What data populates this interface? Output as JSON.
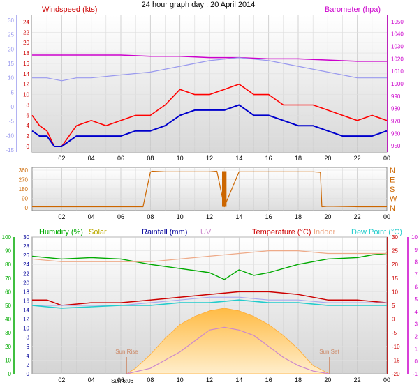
{
  "page_title": "24 hour graph day : 20 April 2014",
  "colors": {
    "wind": "#cc0000",
    "gust": "#ff0000",
    "avg": "#0000cc",
    "temp_axis": "#9999ee",
    "baro": "#cc00cc",
    "dir": "#cc6600",
    "humidity": "#00aa00",
    "solar": "#bbaa00",
    "rain": "#000099",
    "uv": "#cc88cc",
    "temperature": "#cc0000",
    "indoor": "#eeaa88",
    "dewpoint": "#22cccc",
    "solar_fill_top": "#ffcc66",
    "solar_fill_bottom": "#ffeebb"
  },
  "x_ticks": [
    "02",
    "04",
    "06",
    "08",
    "10",
    "12",
    "14",
    "16",
    "18",
    "20",
    "22",
    "00"
  ],
  "chart_data": [
    {
      "type": "line",
      "title": "",
      "legend": [
        {
          "key": "windspeed",
          "label": "Windspeed (kts)"
        },
        {
          "key": "barometer",
          "label": "Barometer (hpa)"
        }
      ],
      "y_left_ticks": [
        0,
        2,
        4,
        6,
        8,
        10,
        12,
        14,
        16,
        18,
        20,
        22,
        24
      ],
      "y_left2_ticks": [
        -15,
        -10,
        -5,
        0,
        5,
        10,
        15,
        20,
        25,
        30
      ],
      "y_right_ticks": [
        950,
        960,
        970,
        980,
        990,
        1000,
        1010,
        1020,
        1030,
        1040,
        1050
      ],
      "ylim_left": [
        0,
        25
      ],
      "ylim_right": [
        945,
        1055
      ],
      "xlim": [
        0,
        24
      ],
      "series": [
        {
          "key": "gust",
          "x": [
            0,
            0.5,
            1,
            1.5,
            2,
            3,
            4,
            5,
            6,
            7,
            8,
            9,
            10,
            11,
            12,
            13,
            14,
            15,
            16,
            17,
            18,
            19,
            20,
            21,
            22,
            23,
            24
          ],
          "values": [
            6,
            4,
            3,
            0,
            0,
            4,
            5,
            4,
            5,
            6,
            6,
            8,
            11,
            10,
            10,
            11,
            12,
            10,
            10,
            8,
            8,
            8,
            7,
            6,
            5,
            6,
            5
          ]
        },
        {
          "key": "avg",
          "x": [
            0,
            0.5,
            1,
            1.5,
            2,
            3,
            4,
            5,
            6,
            7,
            8,
            9,
            10,
            11,
            12,
            13,
            14,
            15,
            16,
            17,
            18,
            19,
            20,
            21,
            22,
            23,
            24
          ],
          "values": [
            3,
            2,
            2,
            0,
            0,
            2,
            2,
            2,
            2,
            3,
            3,
            4,
            6,
            7,
            7,
            7,
            8,
            6,
            6,
            5,
            4,
            4,
            3,
            2,
            2,
            2,
            3
          ]
        },
        {
          "key": "barometer",
          "x": [
            0,
            2,
            4,
            6,
            8,
            10,
            12,
            14,
            16,
            18,
            20,
            22,
            24
          ],
          "values": [
            1023,
            1023,
            1023,
            1023,
            1022,
            1022,
            1021,
            1021,
            1020,
            1020,
            1019,
            1018,
            1018
          ]
        },
        {
          "key": "outdoor_temp_axis",
          "x": [
            0,
            1,
            2,
            3,
            4,
            6,
            8,
            10,
            12,
            14,
            16,
            18,
            20,
            22,
            24
          ],
          "values": [
            10,
            10,
            9,
            10,
            10,
            11,
            12,
            14,
            16,
            17,
            16,
            14,
            12,
            10,
            10
          ]
        }
      ]
    },
    {
      "type": "line",
      "title": "",
      "y_left_ticks": [
        0,
        90,
        180,
        270,
        360
      ],
      "y_right_labels": [
        "N",
        "W",
        "S",
        "E",
        "N"
      ],
      "ylim": [
        0,
        360
      ],
      "xlim": [
        0,
        24
      ],
      "series": [
        {
          "key": "wind_direction",
          "x": [
            0,
            4,
            7.5,
            8,
            8.1,
            9,
            10,
            12,
            12.5,
            13,
            14,
            16,
            18,
            19,
            19.5,
            19.6,
            20,
            22,
            24
          ],
          "values": [
            10,
            10,
            10,
            340,
            350,
            345,
            345,
            345,
            350,
            10,
            345,
            345,
            345,
            345,
            340,
            10,
            15,
            10,
            10
          ]
        }
      ]
    },
    {
      "type": "line",
      "title": "",
      "legend": [
        {
          "key": "humidity",
          "label": "Humidity (%)"
        },
        {
          "key": "solar",
          "label": "Solar"
        },
        {
          "key": "rainfall",
          "label": "Rainfall (mm)"
        },
        {
          "key": "uv",
          "label": "UV"
        },
        {
          "key": "temperature",
          "label": "Temperature (°C)"
        },
        {
          "key": "indoor",
          "label": "Indoor"
        },
        {
          "key": "dewpoint",
          "label": "Dew Point (°C)"
        }
      ],
      "y_hum_ticks": [
        0,
        10,
        20,
        30,
        40,
        50,
        60,
        70,
        80,
        90,
        100
      ],
      "y_rain_ticks": [
        0,
        2,
        4,
        6,
        8,
        10,
        12,
        14,
        16,
        18,
        20,
        22,
        24,
        26,
        28,
        30
      ],
      "y_temp_ticks": [
        -20,
        -15,
        -10,
        -5,
        0,
        5,
        10,
        15,
        20,
        25,
        30
      ],
      "y_dew_ticks": [
        -1,
        0,
        1,
        2,
        3,
        4,
        5,
        6,
        7,
        8,
        9,
        10
      ],
      "ylim_temp": [
        -20,
        30
      ],
      "xlim": [
        0,
        24
      ],
      "annotations": [
        {
          "label": "Sun Rise",
          "x": 6.4
        },
        {
          "label": "Sun Set",
          "x": 20.1
        },
        {
          "label": "Sun 6:06",
          "x": 6.1
        }
      ],
      "series": [
        {
          "key": "humidity",
          "x": [
            0,
            2,
            4,
            6,
            8,
            10,
            12,
            13,
            14,
            15,
            16,
            18,
            20,
            22,
            23,
            24
          ],
          "values": [
            86,
            84,
            85,
            84,
            80,
            77,
            74,
            69,
            76,
            72,
            74,
            80,
            84,
            85,
            87,
            88
          ]
        },
        {
          "key": "indoor",
          "x": [
            0,
            2,
            4,
            6,
            8,
            10,
            12,
            14,
            16,
            18,
            20,
            22,
            24
          ],
          "values": [
            22,
            21,
            21,
            21,
            21,
            22,
            23,
            24,
            25,
            25,
            24,
            24,
            24
          ]
        },
        {
          "key": "temperature",
          "x": [
            0,
            1,
            2,
            4,
            6,
            8,
            10,
            12,
            14,
            16,
            18,
            20,
            22,
            24
          ],
          "values": [
            7,
            7,
            5,
            6,
            6,
            7,
            8,
            9,
            10,
            10,
            9,
            7,
            7,
            6
          ]
        },
        {
          "key": "uv_line",
          "x": [
            0,
            2,
            4,
            6,
            8,
            10,
            12,
            14,
            16,
            18,
            20,
            22,
            24
          ],
          "values": [
            5,
            5,
            5,
            5,
            6,
            7,
            8,
            8,
            7,
            7,
            6,
            6,
            6
          ]
        },
        {
          "key": "dewpoint",
          "x": [
            0,
            1,
            2,
            4,
            6,
            8,
            10,
            12,
            14,
            16,
            18,
            20,
            22,
            24
          ],
          "values": [
            5,
            4.5,
            4,
            4.5,
            5,
            5,
            6,
            6,
            7,
            6,
            6,
            5,
            5,
            5
          ]
        },
        {
          "key": "solar",
          "x": [
            6.4,
            7,
            8,
            9,
            10,
            11,
            12,
            13,
            14,
            15,
            16,
            17,
            18,
            19,
            20.1
          ],
          "values": [
            -20,
            -18,
            -13,
            -7,
            -2,
            1,
            3,
            4,
            3,
            1,
            -2,
            -6,
            -11,
            -17,
            -20
          ]
        },
        {
          "key": "uv",
          "x": [
            6.4,
            8,
            9,
            10,
            11,
            12,
            13,
            14,
            15,
            16,
            17,
            18,
            19,
            20.1
          ],
          "values": [
            -20,
            -18,
            -15,
            -12,
            -8,
            -4,
            -3,
            -4,
            -6,
            -10,
            -14,
            -17,
            -19,
            -20
          ]
        }
      ]
    }
  ]
}
